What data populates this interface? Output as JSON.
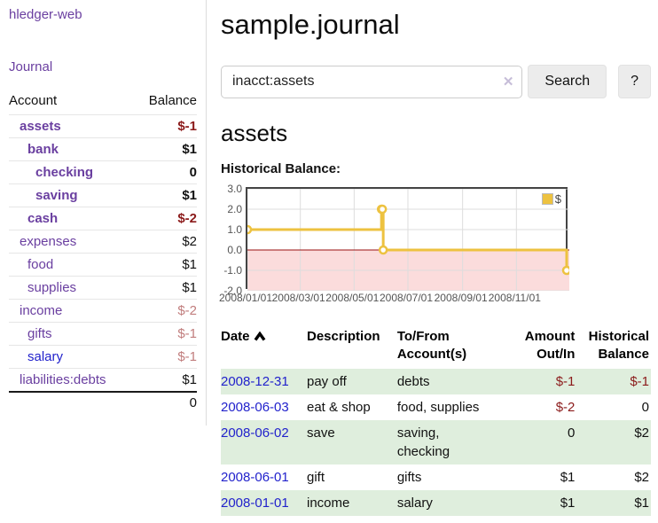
{
  "app": {
    "brand": "hledger-web"
  },
  "sidebar": {
    "nav_journal": "Journal",
    "accounts": {
      "col_account": "Account",
      "col_balance": "Balance",
      "rows": [
        {
          "name": "assets",
          "balance": "$-1",
          "level": 0,
          "bold": true,
          "name_color": "purple",
          "balance_color": "negative_strong"
        },
        {
          "name": "bank",
          "balance": "$1",
          "level": 1,
          "bold": true,
          "name_color": "purple",
          "balance_color": "normal"
        },
        {
          "name": "checking",
          "balance": "0",
          "level": 2,
          "bold": true,
          "name_color": "purple",
          "balance_color": "normal"
        },
        {
          "name": "saving",
          "balance": "$1",
          "level": 2,
          "bold": true,
          "name_color": "purple",
          "balance_color": "normal"
        },
        {
          "name": "cash",
          "balance": "$-2",
          "level": 1,
          "bold": true,
          "name_color": "purple",
          "balance_color": "negative_strong"
        },
        {
          "name": "expenses",
          "balance": "$2",
          "level": 0,
          "bold": false,
          "name_color": "purple",
          "balance_color": "normal"
        },
        {
          "name": "food",
          "balance": "$1",
          "level": 1,
          "bold": false,
          "name_color": "purple",
          "balance_color": "normal"
        },
        {
          "name": "supplies",
          "balance": "$1",
          "level": 1,
          "bold": false,
          "name_color": "purple",
          "balance_color": "normal"
        },
        {
          "name": "income",
          "balance": "$-2",
          "level": 0,
          "bold": false,
          "name_color": "purple",
          "balance_color": "negative_soft"
        },
        {
          "name": "gifts",
          "balance": "$-1",
          "level": 1,
          "bold": false,
          "name_color": "purple",
          "balance_color": "negative_soft"
        },
        {
          "name": "salary",
          "balance": "$-1",
          "level": 1,
          "bold": false,
          "name_color": "blue",
          "balance_color": "negative_soft"
        },
        {
          "name": "liabilities:debts",
          "balance": "$1",
          "level": 0,
          "bold": false,
          "name_color": "purple",
          "balance_color": "normal"
        }
      ],
      "total": "0"
    }
  },
  "header": {
    "title": "sample.journal"
  },
  "search": {
    "value": "inacct:assets",
    "clear_icon": "✕",
    "button": "Search",
    "help_button": "?"
  },
  "account_page": {
    "heading": "assets",
    "chart_label": "Historical Balance:"
  },
  "chart_data": {
    "type": "line",
    "step": true,
    "title": "Historical Balance:",
    "series": [
      {
        "name": "$",
        "color": "#edc240",
        "points": [
          [
            "2008/01/01",
            1
          ],
          [
            "2008/06/01",
            2
          ],
          [
            "2008/06/02",
            2
          ],
          [
            "2008/06/03",
            0
          ],
          [
            "2008/12/31",
            -1
          ]
        ]
      }
    ],
    "x_ticks": [
      "2008/01/01",
      "2008/03/01",
      "2008/05/01",
      "2008/07/01",
      "2008/09/01",
      "2008/11/01"
    ],
    "y_ticks": [
      "3.0",
      "2.0",
      "1.0",
      "0.0",
      "-1.0",
      "-2.0"
    ],
    "ylim": [
      -2,
      3
    ],
    "xlim": [
      "2008/01/01",
      "2008/12/31"
    ],
    "grid": true,
    "legend_position": "top-right",
    "legend_label": "$"
  },
  "register": {
    "sort": {
      "column": "Date",
      "direction": "asc"
    },
    "columns": [
      {
        "lines": [
          "Date"
        ],
        "align": "left",
        "sorted": "asc"
      },
      {
        "lines": [
          "Description"
        ],
        "align": "left"
      },
      {
        "lines": [
          "To/From",
          "Account(s)"
        ],
        "align": "left"
      },
      {
        "lines": [
          "Amount",
          "Out/In"
        ],
        "align": "right"
      },
      {
        "lines": [
          "Historical",
          "Balance"
        ],
        "align": "right"
      }
    ],
    "rows": [
      {
        "date": "2008-12-31",
        "description": "pay off",
        "accounts": [
          "debts"
        ],
        "amount": "$-1",
        "amount_negative": true,
        "balance": "$-1",
        "balance_negative": true
      },
      {
        "date": "2008-06-03",
        "description": "eat & shop",
        "accounts": [
          "food, supplies"
        ],
        "amount": "$-2",
        "amount_negative": true,
        "balance": "0",
        "balance_negative": false
      },
      {
        "date": "2008-06-02",
        "description": "save",
        "accounts": [
          "saving,",
          "checking"
        ],
        "amount": "0",
        "amount_negative": false,
        "balance": "$2",
        "balance_negative": false
      },
      {
        "date": "2008-06-01",
        "description": "gift",
        "accounts": [
          "gifts"
        ],
        "amount": "$1",
        "amount_negative": false,
        "balance": "$2",
        "balance_negative": false
      },
      {
        "date": "2008-01-01",
        "description": "income",
        "accounts": [
          "salary"
        ],
        "amount": "$1",
        "amount_negative": false,
        "balance": "$1",
        "balance_negative": false
      }
    ]
  },
  "colors": {
    "link_purple": "#6a3fa0",
    "link_blue": "#2222cc",
    "negative_strong": "#8b1a1a",
    "negative_soft": "#c17d7d",
    "row_stripe": "#dfeedd",
    "chart_line": "#edc240",
    "chart_negative_fill": "#fbdcdc",
    "chart_zero_line": "#991111"
  }
}
